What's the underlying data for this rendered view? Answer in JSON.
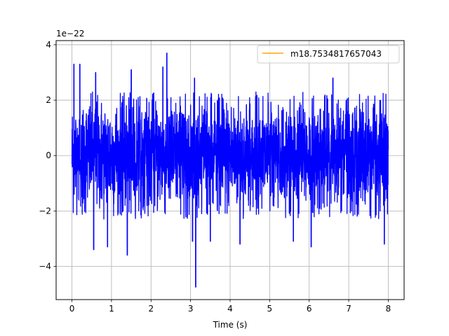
{
  "chart_data": {
    "type": "line",
    "title": "",
    "xlabel": "Time (s)",
    "ylabel": "",
    "offset_text": "1e−22",
    "xlim": [
      -0.4,
      8.4
    ],
    "ylim": [
      -5.2,
      4.15
    ],
    "xticks": [
      0,
      1,
      2,
      3,
      4,
      5,
      6,
      7,
      8
    ],
    "xtick_labels": [
      "0",
      "1",
      "2",
      "3",
      "4",
      "5",
      "6",
      "7",
      "8"
    ],
    "yticks": [
      -4,
      -2,
      0,
      2,
      4
    ],
    "ytick_labels": [
      "−4",
      "−2",
      "0",
      "2",
      "4"
    ],
    "grid": true,
    "legend_position": "top-right",
    "series": [
      {
        "name": "m18.7534817657043",
        "color": "#ffa500",
        "role": "legend-only"
      },
      {
        "color": "#0000ff",
        "role": "signal",
        "x_range": [
          0,
          8
        ],
        "typical_band": [
          -2.0,
          2.0
        ],
        "peaks": [
          {
            "x": 0.05,
            "y": 3.3
          },
          {
            "x": 0.2,
            "y": 3.3
          },
          {
            "x": 0.6,
            "y": 3.0
          },
          {
            "x": 1.5,
            "y": 3.1
          },
          {
            "x": 2.3,
            "y": 3.2
          },
          {
            "x": 2.4,
            "y": 3.7
          },
          {
            "x": 3.1,
            "y": 2.8
          },
          {
            "x": 6.6,
            "y": 2.8
          }
        ],
        "troughs": [
          {
            "x": 0.55,
            "y": -3.4
          },
          {
            "x": 0.9,
            "y": -3.3
          },
          {
            "x": 1.4,
            "y": -3.6
          },
          {
            "x": 3.05,
            "y": -3.1
          },
          {
            "x": 3.13,
            "y": -4.75
          },
          {
            "x": 3.5,
            "y": -3.1
          },
          {
            "x": 4.25,
            "y": -3.2
          },
          {
            "x": 5.6,
            "y": -3.1
          },
          {
            "x": 6.05,
            "y": -3.3
          },
          {
            "x": 7.9,
            "y": -3.2
          }
        ]
      }
    ]
  }
}
